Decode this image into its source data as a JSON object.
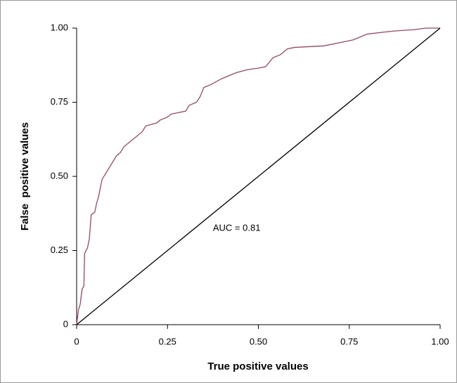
{
  "chart_data": {
    "type": "line",
    "xlabel": "True positive values",
    "ylabel": "False  positive values",
    "annotation": "AUC = 0.81",
    "xlim": [
      0,
      1
    ],
    "ylim": [
      0,
      1
    ],
    "xticks": [
      0,
      0.25,
      {
        "value": 0.5,
        "label": "0.50"
      },
      0.75,
      {
        "value": 1,
        "label": "1.00"
      }
    ],
    "yticks": [
      0,
      0.25,
      {
        "value": 0.5,
        "label": "0.50"
      },
      0.75,
      {
        "value": 1,
        "label": "1.00"
      }
    ],
    "series": [
      {
        "color": "#a0485a",
        "x": [
          0,
          0.005,
          0.01,
          0.015,
          0.02,
          0.022,
          0.03,
          0.035,
          0.04,
          0.05,
          0.055,
          0.06,
          0.065,
          0.07,
          0.08,
          0.09,
          0.1,
          0.11,
          0.12,
          0.13,
          0.15,
          0.17,
          0.18,
          0.19,
          0.22,
          0.23,
          0.25,
          0.26,
          0.3,
          0.31,
          0.33,
          0.34,
          0.35,
          0.37,
          0.4,
          0.42,
          0.44,
          0.47,
          0.5,
          0.52,
          0.54,
          0.56,
          0.58,
          0.6,
          0.68,
          0.72,
          0.76,
          0.78,
          0.8,
          0.87,
          0.93,
          0.96,
          1.0
        ],
        "values": [
          0,
          0.05,
          0.07,
          0.12,
          0.13,
          0.24,
          0.26,
          0.29,
          0.37,
          0.38,
          0.41,
          0.43,
          0.46,
          0.49,
          0.51,
          0.53,
          0.55,
          0.57,
          0.58,
          0.6,
          0.62,
          0.64,
          0.65,
          0.67,
          0.68,
          0.69,
          0.7,
          0.71,
          0.72,
          0.74,
          0.75,
          0.77,
          0.8,
          0.81,
          0.83,
          0.84,
          0.85,
          0.86,
          0.865,
          0.87,
          0.9,
          0.91,
          0.93,
          0.935,
          0.94,
          0.95,
          0.96,
          0.97,
          0.98,
          0.99,
          0.995,
          1.0,
          1.0
        ]
      },
      {
        "color": "#000000",
        "x": [
          0,
          1
        ],
        "values": [
          0,
          1
        ]
      }
    ]
  }
}
